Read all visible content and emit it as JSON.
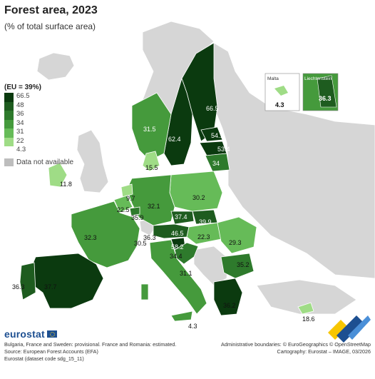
{
  "title": "Forest area, 2023",
  "subtitle": "(% of total surface area)",
  "legend": {
    "title": "(EU = 39%)",
    "items": [
      {
        "label": "66.5",
        "color": "#0b3a0f"
      },
      {
        "label": "48",
        "color": "#1e5c1f"
      },
      {
        "label": "36",
        "color": "#2e7a2c"
      },
      {
        "label": "34",
        "color": "#459a3c"
      },
      {
        "label": "31",
        "color": "#66bb58"
      },
      {
        "label": "22",
        "color": "#9fdc86"
      },
      {
        "label": "4.3",
        "color": ""
      }
    ],
    "na_label": "Data not available",
    "na_color": "#bdbdbd"
  },
  "insets": {
    "malta": {
      "name": "Malta",
      "value": "4.3"
    },
    "liechtenstein": {
      "name": "Liechtenstein",
      "value": "36.3"
    }
  },
  "chart_data": {
    "type": "choropleth",
    "unit": "% of total surface area",
    "eu_value": 39,
    "regions": [
      {
        "value": "66.5",
        "color": "#0b3a0f"
      },
      {
        "value": "62.4",
        "color": "#0b3a0f"
      },
      {
        "value": "31.5",
        "color": "#459a3c"
      },
      {
        "value": "15.5",
        "color": "#9fdc86"
      },
      {
        "value": "54.1",
        "color": "#0b3a0f"
      },
      {
        "value": "53.4",
        "color": "#0b3a0f"
      },
      {
        "value": "34",
        "color": "#2e7a2c"
      },
      {
        "value": "11.8",
        "color": "#9fdc86"
      },
      {
        "value": "30.2",
        "color": "#66bb58"
      },
      {
        "value": "9.7",
        "color": "#9fdc86"
      },
      {
        "value": "22.5",
        "color": "#66bb58"
      },
      {
        "value": "32.1",
        "color": "#459a3c"
      },
      {
        "value": "35.9",
        "color": "#2e7a2c"
      },
      {
        "value": "37.4",
        "color": "#1e5c1f"
      },
      {
        "value": "39.9",
        "color": "#1e5c1f"
      },
      {
        "value": "32.3",
        "color": "#459a3c"
      },
      {
        "value": "36.3",
        "color": "#1e5c1f"
      },
      {
        "value": "30.5",
        "color": "#66bb58"
      },
      {
        "value": "46.5",
        "color": "#1e5c1f"
      },
      {
        "value": "22.3",
        "color": "#66bb58"
      },
      {
        "value": "29.3",
        "color": "#66bb58"
      },
      {
        "value": "58.2",
        "color": "#0b3a0f"
      },
      {
        "value": "34.4",
        "color": "#2e7a2c"
      },
      {
        "value": "35.2",
        "color": "#2e7a2c"
      },
      {
        "value": "31.1",
        "color": "#459a3c"
      },
      {
        "value": "36.3",
        "color": "#1e5c1f"
      },
      {
        "value": "37.7",
        "color": "#1e5c1f"
      },
      {
        "value": "36.2",
        "color": "#1e5c1f"
      },
      {
        "value": "4.3",
        "color": "#9fdc86"
      },
      {
        "value": "18.6",
        "color": "#9fdc86"
      }
    ]
  },
  "footer": {
    "logo": "eurostat",
    "note1": "Bulgaria, France and Sweden: provisional. France and Romania: estimated.",
    "note2": "Source: European Forest Accounts (EFA)",
    "note3": "Eurostat (dataset code sdg_15_11)",
    "credit1": "Administrative boundaries: © EuroGeographics © OpenStreetMap",
    "credit2": "Cartography: Eurostat – IMAGE, 03/2026"
  }
}
